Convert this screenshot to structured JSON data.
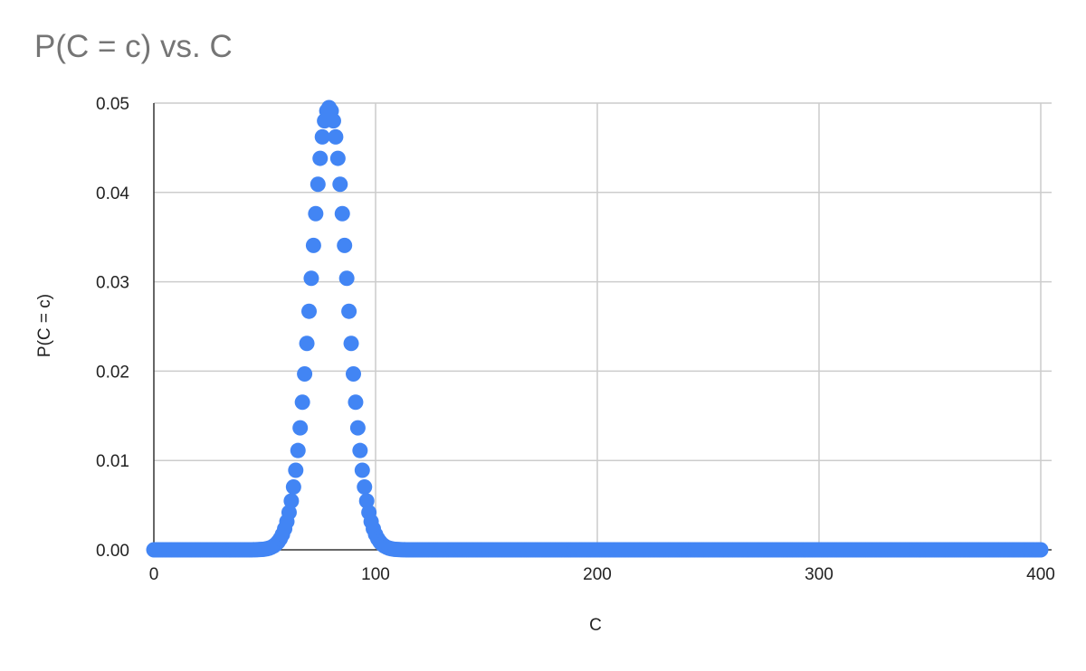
{
  "chart_data": {
    "type": "scatter",
    "title": "P(C = c) vs. C",
    "xlabel": "C",
    "ylabel": "P(C = c)",
    "xlim": [
      0,
      400
    ],
    "ylim": [
      0,
      0.05
    ],
    "x_ticks": [
      "0",
      "100",
      "200",
      "300",
      "400"
    ],
    "y_ticks": [
      "0.00",
      "0.01",
      "0.02",
      "0.03",
      "0.04",
      "0.05"
    ],
    "grid": true,
    "marker_color": "#4285f4",
    "distribution_note": "One point per integer C from 0 to 400; values follow a bell-shaped curve peaking near C = 79 at about 0.0495 and are ~0 outside roughly 55–105.",
    "series": [
      {
        "x_start": 0,
        "x_end": 400,
        "x_step": 1,
        "peak_x": 79,
        "peak_y": 0.0495,
        "spread": 8.1,
        "sample_points": [
          [
            60,
            0.0029
          ],
          [
            62,
            0.0045
          ],
          [
            64,
            0.0085
          ],
          [
            66,
            0.0135
          ],
          [
            68,
            0.0198
          ],
          [
            70,
            0.0272
          ],
          [
            72,
            0.0349
          ],
          [
            74,
            0.0419
          ],
          [
            76,
            0.047
          ],
          [
            78,
            0.0493
          ],
          [
            80,
            0.0492
          ],
          [
            82,
            0.0459
          ],
          [
            84,
            0.0402
          ],
          [
            86,
            0.0333
          ],
          [
            88,
            0.0259
          ],
          [
            90,
            0.019
          ],
          [
            92,
            0.0132
          ],
          [
            94,
            0.0087
          ],
          [
            96,
            0.0054
          ],
          [
            98,
            0.0031
          ],
          [
            100,
            0.0017
          ]
        ]
      }
    ]
  }
}
